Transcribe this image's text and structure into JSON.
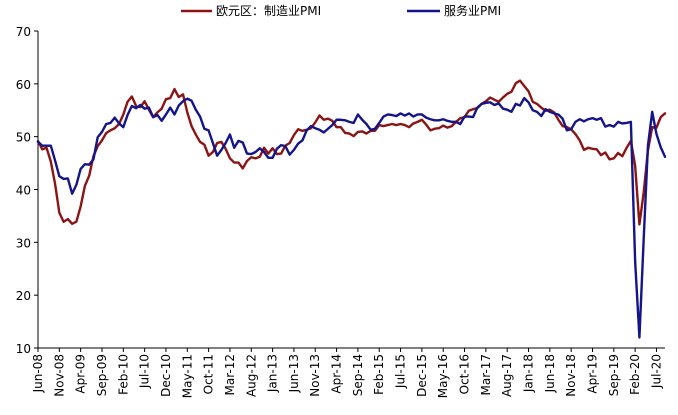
{
  "chart_data": {
    "type": "line",
    "title": "",
    "xlabel": "",
    "ylabel": "",
    "ylim": [
      10,
      70
    ],
    "yticks": [
      10,
      20,
      30,
      40,
      50,
      60,
      70
    ],
    "grid": false,
    "legend_position": "top",
    "x_start": "Jun-08",
    "x_tick_labels": [
      "Jun-08",
      "Nov-08",
      "Apr-09",
      "Sep-09",
      "Feb-10",
      "Jul-10",
      "Dec-10",
      "May-11",
      "Oct-11",
      "Mar-12",
      "Aug-12",
      "Jan-13",
      "Jun-13",
      "Nov-13",
      "Apr-14",
      "Sep-14",
      "Feb-15",
      "Jul-15",
      "Dec-15",
      "May-16",
      "Oct-16",
      "Mar-17",
      "Aug-17",
      "Jan-18",
      "Jun-18",
      "Nov-18",
      "Apr-19",
      "Sep-19",
      "Feb-20",
      "Jul-20"
    ],
    "series": [
      {
        "name": "欧元区：制造业PMI",
        "color": "#8b1414",
        "values": [
          49.2,
          47.6,
          47.9,
          45.3,
          41.1,
          35.6,
          33.9,
          34.4,
          33.5,
          33.9,
          36.8,
          40.7,
          42.6,
          46.3,
          48.2,
          49.3,
          50.7,
          51.2,
          51.6,
          52.4,
          54.2,
          56.6,
          57.6,
          55.8,
          55.6,
          56.7,
          55.1,
          53.7,
          54.6,
          55.3,
          57.1,
          57.3,
          59.0,
          57.5,
          58.0,
          54.6,
          52.0,
          50.4,
          49.0,
          48.5,
          46.4,
          47.1,
          48.8,
          49.0,
          47.7,
          45.9,
          45.1,
          45.1,
          44.0,
          45.4,
          46.1,
          45.9,
          46.2,
          47.9,
          46.8,
          47.8,
          46.7,
          46.8,
          48.3,
          48.8,
          50.3,
          51.4,
          51.1,
          51.3,
          51.6,
          52.7,
          54.0,
          53.2,
          53.4,
          53.0,
          51.8,
          51.8,
          50.7,
          50.6,
          50.1,
          50.9,
          51.0,
          50.6,
          51.1,
          51.1,
          52.2,
          52.0,
          52.2,
          52.4,
          52.2,
          52.4,
          52.2,
          51.8,
          52.5,
          52.8,
          53.2,
          52.3,
          51.2,
          51.5,
          51.6,
          52.1,
          51.7,
          52.0,
          52.8,
          53.5,
          53.7,
          54.9,
          55.2,
          55.4,
          56.2,
          56.7,
          57.4,
          57.0,
          56.6,
          57.4,
          58.1,
          58.5,
          60.1,
          60.6,
          59.6,
          58.6,
          56.6,
          56.2,
          55.5,
          54.9,
          55.1,
          54.6,
          53.2,
          52.0,
          51.8,
          51.4,
          50.5,
          49.3,
          47.5,
          47.9,
          47.7,
          47.6,
          46.5,
          47.0,
          45.7,
          45.9,
          46.9,
          46.3,
          47.9,
          49.2,
          44.5,
          33.4,
          39.4,
          47.4,
          51.8,
          51.7,
          53.7,
          54.4
        ]
      },
      {
        "name": "服务业PMI",
        "color": "#14148b",
        "values": [
          49.0,
          48.3,
          48.3,
          48.3,
          45.5,
          42.5,
          42.0,
          42.1,
          39.2,
          40.9,
          43.9,
          44.8,
          44.7,
          45.7,
          49.9,
          50.9,
          52.4,
          52.6,
          53.6,
          52.5,
          51.8,
          54.1,
          55.8,
          55.4,
          56.0,
          55.3,
          55.5,
          53.7,
          54.1,
          53.0,
          54.2,
          55.5,
          54.2,
          55.9,
          56.7,
          57.2,
          56.8,
          55.1,
          53.8,
          51.5,
          51.2,
          48.8,
          46.4,
          47.5,
          48.8,
          50.4,
          47.9,
          49.2,
          48.9,
          46.8,
          46.7,
          47.1,
          47.8,
          47.1,
          46.0,
          46.0,
          47.7,
          48.4,
          48.2,
          46.6,
          47.5,
          48.7,
          49.3,
          51.2,
          52.0,
          51.6,
          51.3,
          50.8,
          51.5,
          52.2,
          53.2,
          53.2,
          53.1,
          52.8,
          52.6,
          54.2,
          53.2,
          52.4,
          51.3,
          51.5,
          52.6,
          53.8,
          54.2,
          54.1,
          53.9,
          54.4,
          54.0,
          54.4,
          53.8,
          54.2,
          54.2,
          53.6,
          53.3,
          53.1,
          53.1,
          53.3,
          53.0,
          52.8,
          52.8,
          52.4,
          53.8,
          53.8,
          53.7,
          55.5,
          56.2,
          56.4,
          56.5,
          56.0,
          56.3,
          55.3,
          55.1,
          54.7,
          56.2,
          55.9,
          57.3,
          56.5,
          55.0,
          54.7,
          53.9,
          55.2,
          54.7,
          54.4,
          54.2,
          53.4,
          51.2,
          51.4,
          52.8,
          53.3,
          52.9,
          53.3,
          53.5,
          53.2,
          53.5,
          51.9,
          52.2,
          51.9,
          52.8,
          52.5,
          52.6,
          52.8,
          26.4,
          12.0,
          30.5,
          48.3,
          54.7,
          50.5,
          48.0,
          46.2
        ]
      }
    ]
  }
}
